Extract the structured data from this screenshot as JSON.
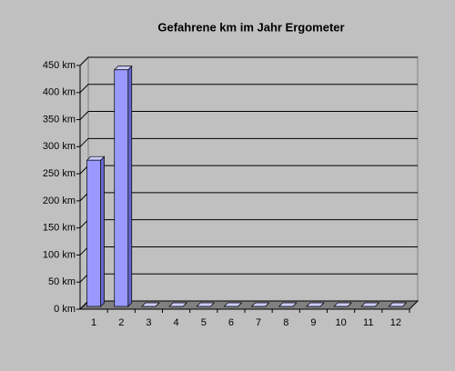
{
  "chart_data": {
    "type": "bar",
    "title": "Gefahrene km im Jahr Ergometer",
    "categories": [
      "1",
      "2",
      "3",
      "4",
      "5",
      "6",
      "7",
      "8",
      "9",
      "10",
      "11",
      "12"
    ],
    "values": [
      270,
      437,
      0,
      0,
      0,
      0,
      0,
      0,
      0,
      0,
      0,
      0
    ],
    "color": "#9999ff",
    "ylim": [
      0,
      450
    ],
    "yticks": [
      {
        "value": 0,
        "label": "0 km"
      },
      {
        "value": 50,
        "label": "50 km"
      },
      {
        "value": 100,
        "label": "100 km"
      },
      {
        "value": 150,
        "label": "150 km"
      },
      {
        "value": 200,
        "label": "200 km"
      },
      {
        "value": 250,
        "label": "250 km"
      },
      {
        "value": 300,
        "label": "300 km"
      },
      {
        "value": 350,
        "label": "350 km"
      },
      {
        "value": 400,
        "label": "400 km"
      },
      {
        "value": 450,
        "label": "450 km"
      }
    ],
    "grid": true
  }
}
